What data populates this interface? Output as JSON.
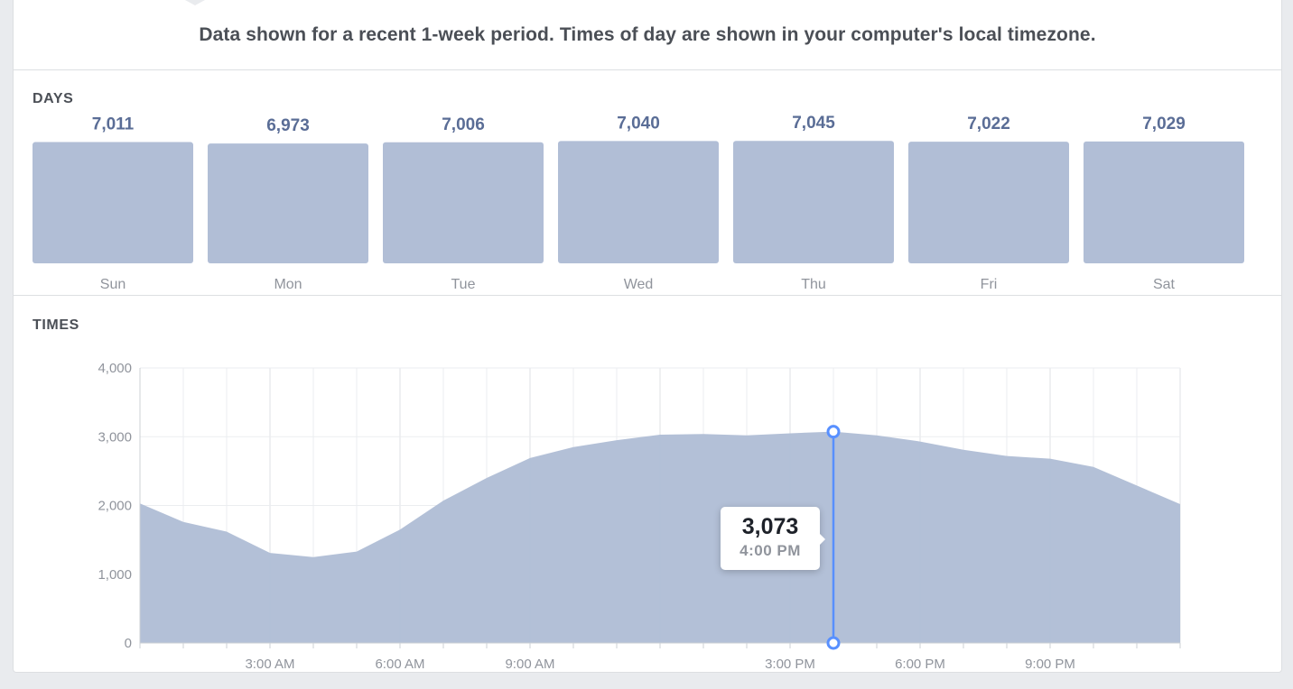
{
  "banner": {
    "text": "Data shown for a recent 1-week period. Times of day are shown in your computer's local timezone."
  },
  "colors": {
    "bar_fill": "#b1bed6",
    "area_fill": "#b1bed6",
    "value_label": "#5a6d96",
    "axis_text": "#90949c",
    "highlight": "#5890ff",
    "grid": "#ebedf0"
  },
  "chart_data": [
    {
      "type": "bar",
      "title": "DAYS",
      "categories": [
        "Sun",
        "Mon",
        "Tue",
        "Wed",
        "Thu",
        "Fri",
        "Sat"
      ],
      "values": [
        7011,
        6973,
        7006,
        7040,
        7045,
        7022,
        7029
      ],
      "value_labels": [
        "7,011",
        "6,973",
        "7,006",
        "7,040",
        "7,045",
        "7,022",
        "7,029"
      ]
    },
    {
      "type": "area",
      "title": "TIMES",
      "x_hours": [
        0,
        1,
        2,
        3,
        4,
        5,
        6,
        7,
        8,
        9,
        10,
        11,
        12,
        13,
        14,
        15,
        16,
        17,
        18,
        19,
        20,
        21,
        22,
        23,
        24
      ],
      "values": [
        2030,
        1760,
        1620,
        1310,
        1250,
        1330,
        1650,
        2070,
        2400,
        2690,
        2850,
        2950,
        3030,
        3040,
        3020,
        3050,
        3073,
        3020,
        2930,
        2810,
        2720,
        2680,
        2560,
        2290,
        2020
      ],
      "ylim": [
        0,
        4000
      ],
      "yticks": [
        {
          "value": 0,
          "label": "0"
        },
        {
          "value": 1000,
          "label": "1,000"
        },
        {
          "value": 2000,
          "label": "2,000"
        },
        {
          "value": 3000,
          "label": "3,000"
        },
        {
          "value": 4000,
          "label": "4,000"
        }
      ],
      "xticks": [
        {
          "hour": 3,
          "label": "3:00 AM"
        },
        {
          "hour": 6,
          "label": "6:00 AM"
        },
        {
          "hour": 9,
          "label": "9:00 AM"
        },
        {
          "hour": 15,
          "label": "3:00 PM"
        },
        {
          "hour": 18,
          "label": "6:00 PM"
        },
        {
          "hour": 21,
          "label": "9:00 PM"
        }
      ],
      "grid": true,
      "highlight": {
        "hour": 16,
        "value": 3073,
        "value_label": "3,073",
        "time_label": "4:00 PM"
      }
    }
  ]
}
